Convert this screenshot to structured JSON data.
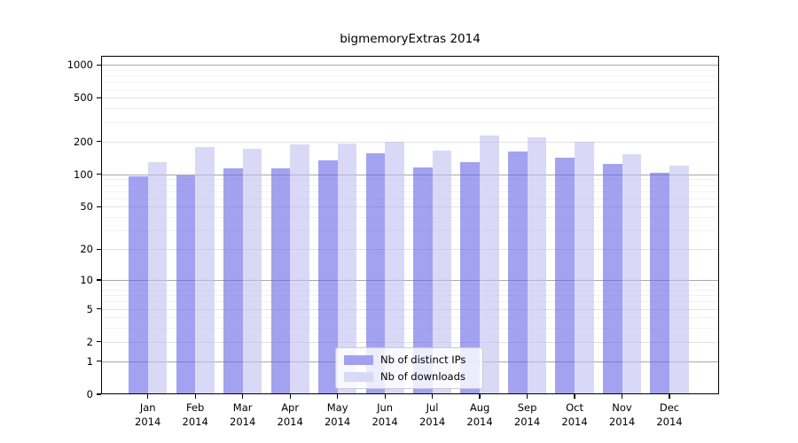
{
  "title": "bigmemoryExtras 2014",
  "chart_data": {
    "type": "bar",
    "title": "bigmemoryExtras 2014",
    "categories": [
      "Jan 2014",
      "Feb 2014",
      "Mar 2014",
      "Apr 2014",
      "May 2014",
      "Jun 2014",
      "Jul 2014",
      "Aug 2014",
      "Sep 2014",
      "Oct 2014",
      "Nov 2014",
      "Dec 2014"
    ],
    "x_tick_line1": [
      "Jan",
      "Feb",
      "Mar",
      "Apr",
      "May",
      "Jun",
      "Jul",
      "Aug",
      "Sep",
      "Oct",
      "Nov",
      "Dec"
    ],
    "x_tick_line2": [
      "2014",
      "2014",
      "2014",
      "2014",
      "2014",
      "2014",
      "2014",
      "2014",
      "2014",
      "2014",
      "2014",
      "2014"
    ],
    "series": [
      {
        "name": "Nb of distinct IPs",
        "color": "#a1a1f1",
        "bar_fill": "rgba(100,100,232,0.6)",
        "values": [
          95,
          97,
          113,
          114,
          134,
          157,
          116,
          129,
          161,
          141,
          125,
          104
        ]
      },
      {
        "name": "Nb of downloads",
        "color": "#d9d9f7",
        "bar_fill": "rgba(192,192,242,0.6)",
        "values": [
          130,
          176,
          170,
          187,
          190,
          197,
          164,
          228,
          220,
          200,
          153,
          120
        ]
      }
    ],
    "yscale": "log1p",
    "y_ticks": [
      0,
      1,
      2,
      5,
      10,
      20,
      50,
      100,
      200,
      500,
      1000
    ],
    "ylim": [
      0,
      1200
    ],
    "grid": true,
    "legend_position": "lower center",
    "grid_colors": {
      "major": "#a8a8a8",
      "mid": "#e2e2e2",
      "minor": "#f2f2f2"
    }
  }
}
